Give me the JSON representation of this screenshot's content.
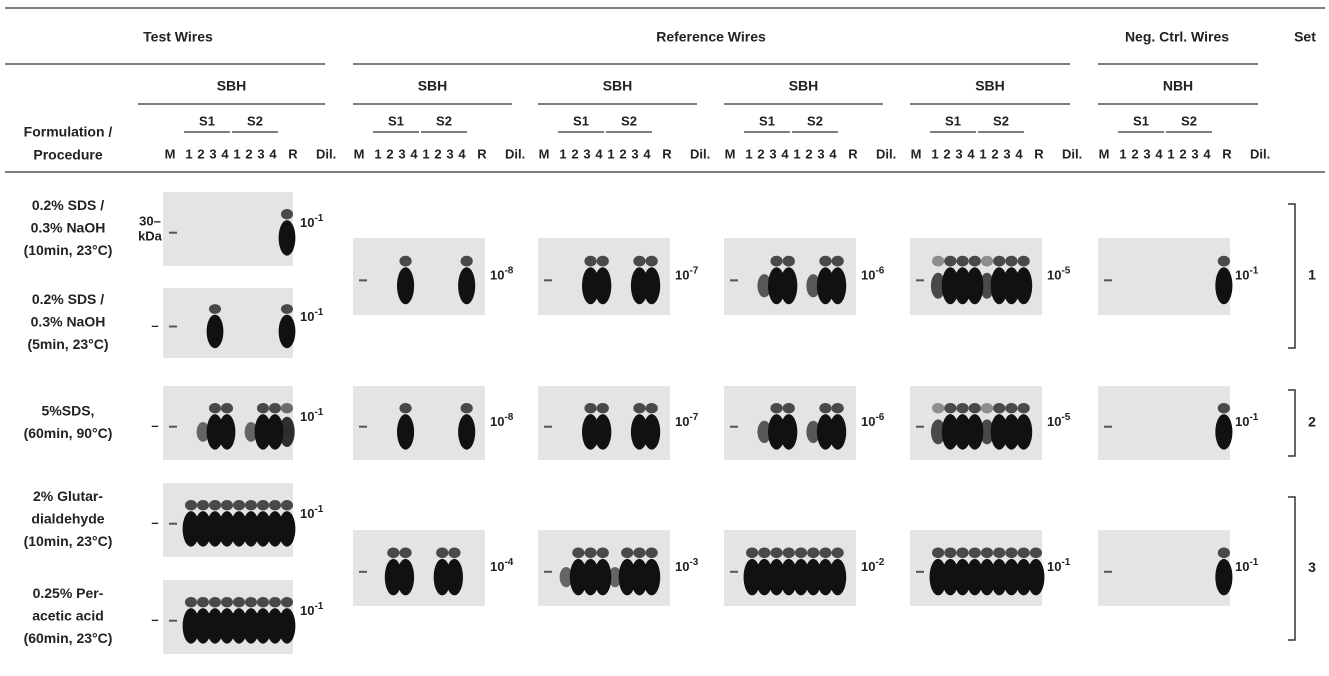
{
  "header": {
    "groups": [
      "Test Wires",
      "Reference Wires",
      "Neg. Ctrl. Wires",
      "Set"
    ],
    "sample_types": [
      "SBH",
      "SBH",
      "SBH",
      "SBH",
      "SBH",
      "NBH"
    ],
    "formulation_label": [
      "Formulation /",
      "Procedure"
    ],
    "subsets": [
      "S1",
      "S2"
    ],
    "lanes": [
      "M",
      "1",
      "2",
      "3",
      "4",
      "1",
      "2",
      "3",
      "4",
      "R",
      "Dil."
    ]
  },
  "marker": {
    "size": "30–",
    "unit": "kDa",
    "tick": "–"
  },
  "rows": [
    {
      "lines": [
        "0.2% SDS /",
        "0.3% NaOH",
        "(10min, 23°C)"
      ],
      "dilution": {
        "base": "10",
        "exp": "-1"
      }
    },
    {
      "lines": [
        "0.2% SDS /",
        "0.3% NaOH",
        "(5min, 23°C)"
      ],
      "dilution": {
        "base": "10",
        "exp": "-1"
      }
    },
    {
      "lines": [
        "5%SDS,",
        "(60min, 90°C)"
      ],
      "dilution": {
        "base": "10",
        "exp": "-1"
      }
    },
    {
      "lines": [
        "2% Glutar-",
        "dialdehyde",
        "(10min, 23°C)"
      ],
      "dilution": {
        "base": "10",
        "exp": "-1"
      }
    },
    {
      "lines": [
        "0.25% Per-",
        "acetic acid",
        "(60min, 23°C)"
      ],
      "dilution": {
        "base": "10",
        "exp": "-1"
      }
    }
  ],
  "sets": [
    {
      "label": "1",
      "dilutions": [
        {
          "base": "10",
          "exp": "-8"
        },
        {
          "base": "10",
          "exp": "-7"
        },
        {
          "base": "10",
          "exp": "-6"
        },
        {
          "base": "10",
          "exp": "-5"
        },
        {
          "base": "10",
          "exp": "-1"
        }
      ]
    },
    {
      "label": "2",
      "dilutions": [
        {
          "base": "10",
          "exp": "-8"
        },
        {
          "base": "10",
          "exp": "-7"
        },
        {
          "base": "10",
          "exp": "-6"
        },
        {
          "base": "10",
          "exp": "-5"
        },
        {
          "base": "10",
          "exp": "-1"
        }
      ]
    },
    {
      "label": "3",
      "dilutions": [
        {
          "base": "10",
          "exp": "-4"
        },
        {
          "base": "10",
          "exp": "-3"
        },
        {
          "base": "10",
          "exp": "-2"
        },
        {
          "base": "10",
          "exp": "-1"
        },
        {
          "base": "10",
          "exp": "-1"
        }
      ]
    }
  ]
}
